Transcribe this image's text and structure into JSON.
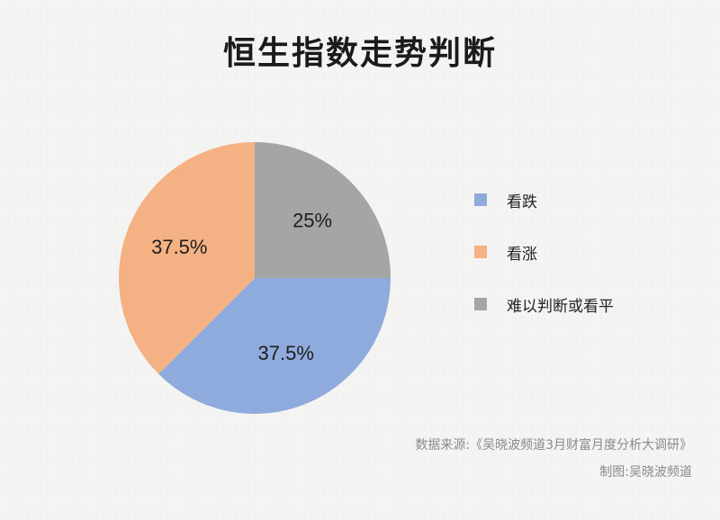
{
  "chart_data": {
    "type": "pie",
    "title": "恒生指数走势判断",
    "slices": [
      {
        "name": "看跌",
        "value": 37.5,
        "label": "37.5%",
        "color": "#8faadc"
      },
      {
        "name": "看涨",
        "value": 37.5,
        "label": "37.5%",
        "color": "#f4b183"
      },
      {
        "name": "难以判断或看平",
        "value": 25,
        "label": "25%",
        "color": "#a5a5a5"
      }
    ],
    "legend_placement": "right"
  },
  "footer": {
    "source": "数据来源:《吴晓波频道3月财富月度分析大调研》",
    "credit": "制图:吴晓波频道"
  }
}
